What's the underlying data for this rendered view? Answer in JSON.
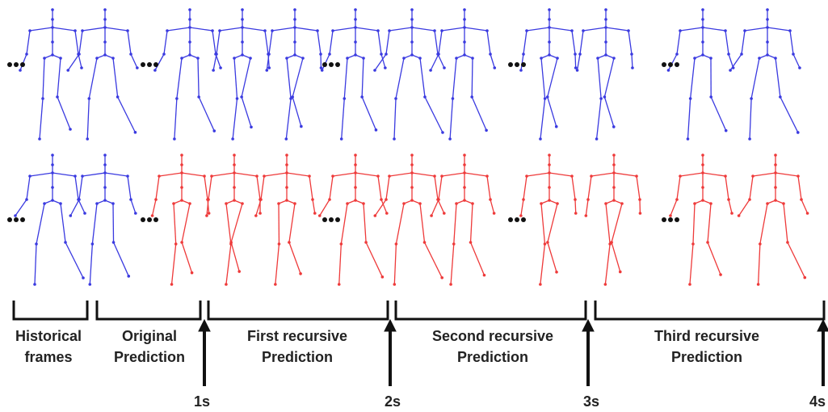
{
  "segments": [
    {
      "lines": [
        "Historical",
        "frames"
      ]
    },
    {
      "lines": [
        "Original",
        "Prediction"
      ]
    },
    {
      "lines": [
        "First recursive",
        "Prediction"
      ]
    },
    {
      "lines": [
        "Second recursive",
        "Prediction"
      ]
    },
    {
      "lines": [
        "Third recursive",
        "Prediction"
      ]
    }
  ],
  "times": [
    "1s",
    "2s",
    "3s",
    "4s"
  ]
}
